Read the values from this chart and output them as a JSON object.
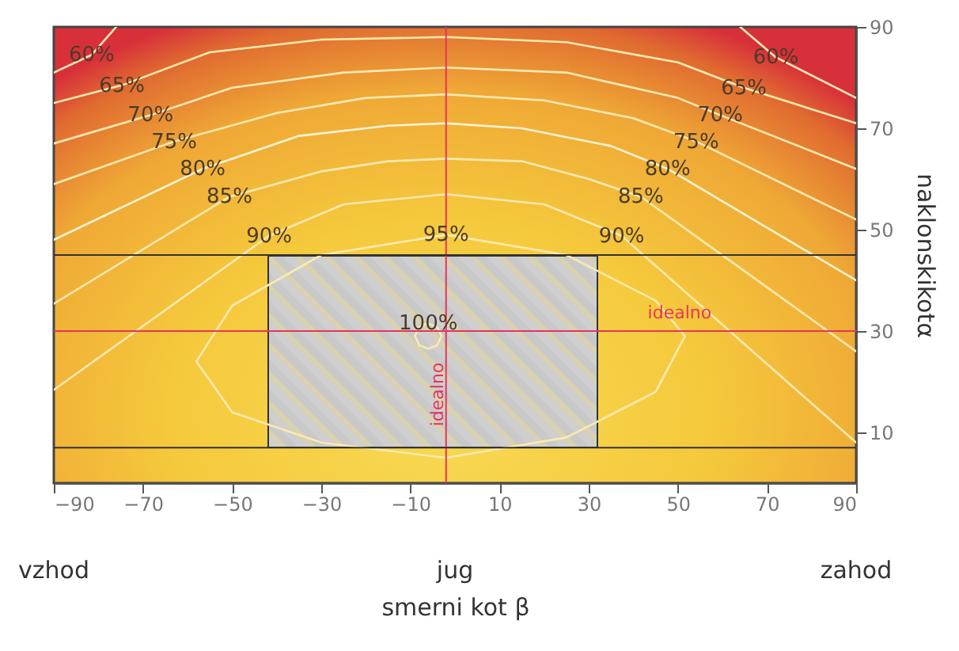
{
  "chart_data": {
    "type": "line",
    "xlabel": "smerni kot β",
    "ylabel": "naklonskikotα",
    "xlim": [
      -90,
      90
    ],
    "xticks": [
      -90,
      -70,
      -50,
      -30,
      -10,
      10,
      30,
      50,
      70,
      90
    ],
    "ylim": [
      0,
      90
    ],
    "yticks": [
      10,
      30,
      50,
      70,
      90
    ],
    "grid": false,
    "marker": "none",
    "line_style": "solid",
    "series": [
      {
        "name": "60%",
        "color": "#fbe9b0",
        "x": [
          -90,
          -81.5,
          -76,
          0,
          64,
          72,
          90
        ],
        "values": [
          81,
          84.5,
          90,
          null,
          90,
          84,
          76
        ]
      },
      {
        "name": "65%",
        "color": "#fbe9b0",
        "x": [
          -90,
          -74.7,
          -55,
          -30,
          -2,
          25,
          50,
          64.8,
          90
        ],
        "values": [
          75,
          78.5,
          85,
          87.5,
          88,
          87,
          83,
          78,
          71
        ]
      },
      {
        "name": "70%",
        "color": "#fbe9b0",
        "x": [
          -90,
          -68.3,
          -50,
          -25,
          -2,
          25,
          50,
          59.5,
          90
        ],
        "values": [
          67,
          72.6,
          78,
          81,
          82,
          81,
          76,
          72.6,
          62
        ]
      },
      {
        "name": "75%",
        "color": "#fbe9b0",
        "x": [
          -90,
          -63,
          -40,
          -20,
          -2,
          20,
          40,
          54.1,
          90
        ],
        "values": [
          59,
          67.4,
          73,
          76,
          76.7,
          75.5,
          72,
          67.4,
          52
        ]
      },
      {
        "name": "80%",
        "color": "#fdf3d4",
        "x": [
          -90,
          -56.6,
          -35,
          -15,
          -2,
          15,
          35,
          47.7,
          90
        ],
        "values": [
          48,
          62,
          68.5,
          70.5,
          71,
          70,
          66.5,
          62,
          40
        ]
      },
      {
        "name": "85%",
        "color": "#fbe9b0",
        "x": [
          -90,
          -50.6,
          -30,
          -15,
          -2,
          15,
          30,
          41.7,
          90
        ],
        "values": [
          35.4,
          56.5,
          61.5,
          63.5,
          64,
          63.5,
          60,
          56.5,
          26
        ]
      },
      {
        "name": "90%",
        "color": "#fbe9b0",
        "x": [
          -90,
          -41.7,
          -25,
          -2,
          20,
          37.4,
          90
        ],
        "values": [
          18.4,
          48.8,
          55,
          57,
          55,
          48.8,
          8
        ]
      },
      {
        "name": "95%",
        "color": "#fbe9b0",
        "x": [
          -58,
          -50,
          -30,
          -2,
          25,
          45,
          51.6
        ],
        "values": [
          24,
          35,
          45,
          49,
          45,
          36,
          29
        ]
      },
      {
        "color": "#fbe9b0",
        "x": [
          -58,
          -50,
          -30,
          -2,
          25,
          45,
          51.6
        ],
        "values": [
          24,
          14,
          8,
          5,
          9,
          18,
          29
        ]
      },
      {
        "name": "100%",
        "color": "#fbe9b0",
        "x": [
          -9,
          -8,
          -6,
          -4,
          -3
        ],
        "values": [
          29,
          30.8,
          31.5,
          30.8,
          29
        ]
      },
      {
        "color": "#fbe9b0",
        "x": [
          -9,
          -8,
          -6,
          -4,
          -3
        ],
        "values": [
          29,
          27.2,
          26.5,
          27.2,
          29
        ]
      }
    ],
    "ref_lines": [
      {
        "axis": "x",
        "value": -2,
        "label": "idealno",
        "color": "#e8335a"
      },
      {
        "axis": "y",
        "value": 30,
        "label": "idealno",
        "color": "#e8335a"
      },
      {
        "axis": "y",
        "value": 45,
        "color": "#333333"
      },
      {
        "axis": "y",
        "value": 7,
        "color": "#333333"
      }
    ],
    "annotations": [
      "vzhod",
      "jug",
      "zahod"
    ]
  }
}
